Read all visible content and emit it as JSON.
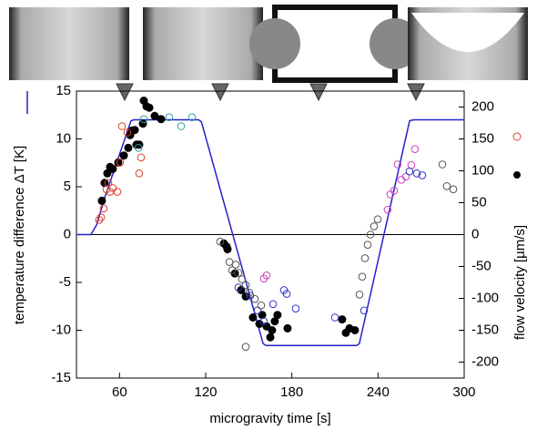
{
  "chart_data": {
    "type": "scatter",
    "x_label": "microgravity time [s]",
    "y_label": "temperature difference ΔT [K]",
    "y2_label": "flow velocity [µm/s]",
    "xlim": [
      30,
      300
    ],
    "xticks": [
      60,
      120,
      180,
      240,
      300
    ],
    "ylim": [
      -15,
      15
    ],
    "yticks": [
      -15,
      -10,
      -5,
      0,
      5,
      10,
      15
    ],
    "y2lim": [
      -225,
      225
    ],
    "y2ticks": [
      -200,
      -150,
      -100,
      -50,
      0,
      50,
      100,
      150,
      200
    ],
    "series": [
      {
        "type": "line",
        "color": "#2222cc",
        "x": [
          30,
          40,
          44,
          50,
          68,
          70,
          115,
          117,
          160,
          162,
          225,
          227,
          262,
          265,
          300
        ],
        "values": [
          0,
          0,
          1,
          4,
          11.9,
          12,
          12,
          11.8,
          -11.4,
          -11.6,
          -11.6,
          -11.4,
          11.9,
          12,
          12
        ]
      },
      {
        "type": "scatter",
        "axis": "y2",
        "marker": "filled",
        "color": "#000000",
        "x": [
          47.7,
          49.6,
          51.5,
          53.4,
          55.3,
          59.1,
          63,
          66.1,
          67.4,
          68.7,
          70.6,
          71.8,
          73.7,
          76.3,
          76.9,
          78.8,
          80.7,
          84.5,
          88.9,
          132.7,
          134.6,
          135.2,
          140.3,
          144.7,
          147.9,
          152.9,
          157.4,
          159.3,
          162.4,
          165,
          166.2,
          168.1,
          170,
          177,
          215,
          217.6,
          220.1,
          223.9
        ],
        "values": [
          53,
          81,
          96,
          106,
          103,
          113,
          124,
          136,
          156,
          163,
          164,
          141,
          141,
          174,
          210,
          201,
          199,
          186,
          181,
          -14,
          -19,
          -23,
          -61,
          -87,
          -97,
          -130,
          -140,
          -126,
          -144,
          -161,
          -150,
          -136,
          -126,
          -147,
          -133,
          -154,
          -147,
          -150
        ]
      },
      {
        "type": "scatter",
        "axis": "y2",
        "marker": "open",
        "color": "#e0402a",
        "x": [
          45.8,
          47.1,
          49,
          50.9,
          52.2,
          53.4,
          55.3,
          58.5,
          60.4,
          61.7,
          65.5,
          73.7,
          75
        ],
        "values": [
          23,
          27,
          41,
          71,
          81,
          67,
          73,
          67,
          113,
          170,
          160,
          96,
          121
        ]
      },
      {
        "type": "scatter",
        "axis": "y2",
        "marker": "open",
        "color": "#d040c0",
        "x": [
          160.5,
          162.4,
          246.7,
          248.6,
          251.2,
          253.7,
          256.2,
          259.4,
          263.2,
          265.7
        ],
        "values": [
          -69,
          -64,
          39,
          63,
          69,
          110,
          86,
          91,
          109,
          134
        ]
      },
      {
        "type": "scatter",
        "axis": "y2",
        "marker": "open",
        "color": "#3333cc",
        "x": [
          142.8,
          151,
          156.1,
          160.5,
          166.9,
          174.5,
          176.4,
          182.7,
          210,
          230.3,
          261.9,
          267,
          270.8
        ],
        "values": [
          -83,
          -96,
          -119,
          -136,
          -109,
          -87,
          -93,
          -116,
          -130,
          -119,
          99,
          96,
          93
        ]
      },
      {
        "type": "scatter",
        "axis": "y2",
        "marker": "open",
        "color": "#30a0a0",
        "x": [
          73.1,
          76.9,
          94.6,
          102.9,
          110.5
        ],
        "values": [
          136,
          181,
          184,
          170,
          184
        ]
      },
      {
        "type": "scatter",
        "axis": "y2",
        "marker": "open",
        "color": "#555555",
        "x": [
          130.1,
          136.5,
          138.4,
          140.9,
          142.8,
          145.3,
          147.9,
          150.4,
          154.2,
          158.6,
          147.9,
          227.1,
          229,
          230.9,
          232.8,
          234.7,
          237.2,
          239.8,
          284.8,
          287.9,
          292.4
        ],
        "values": [
          -11,
          -43,
          -56,
          -47,
          -60,
          -70,
          -79,
          -91,
          -101,
          -111,
          -176,
          -94,
          -66,
          -37,
          -16,
          0,
          13,
          24,
          110,
          76,
          71
        ]
      }
    ]
  }
}
